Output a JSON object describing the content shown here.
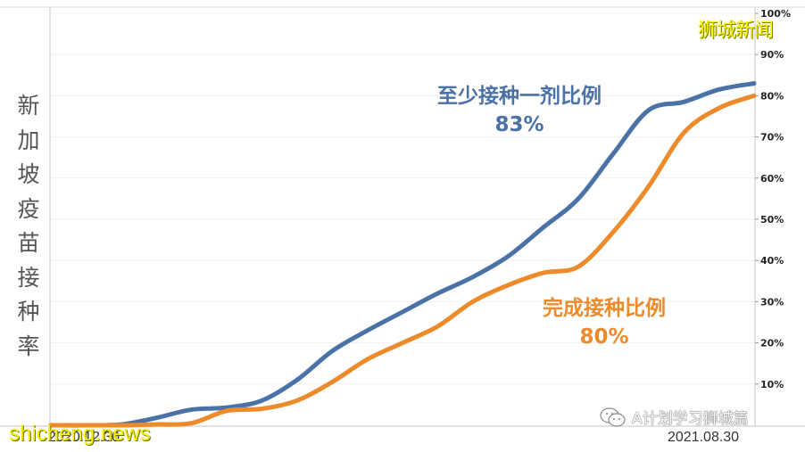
{
  "chart_data": {
    "type": "line",
    "title": "新加坡疫苗接种率",
    "ylabel": "新加坡疫苗接种率",
    "xlabel": "",
    "x_range": [
      "2020.12.30",
      "2021.08.30"
    ],
    "x_tick_labels": [
      "2020.12.30",
      "2021.08.30"
    ],
    "yticks": [
      "10%",
      "20%",
      "30%",
      "40%",
      "50%",
      "60%",
      "70%",
      "80%",
      "90%",
      "100%"
    ],
    "ylim": [
      0,
      100
    ],
    "y_axis_position": "right",
    "grid": true,
    "x": [
      0,
      0.05,
      0.1,
      0.15,
      0.2,
      0.25,
      0.3,
      0.35,
      0.4,
      0.45,
      0.5,
      0.55,
      0.6,
      0.65,
      0.7,
      0.75,
      0.8,
      0.85,
      0.9,
      0.95,
      1.0
    ],
    "series": [
      {
        "name": "至少接种一剂比例",
        "color": "#4a72a6",
        "final_label": "83%",
        "values": [
          0,
          0,
          0.2,
          1.8,
          3.8,
          4.3,
          6,
          11,
          18,
          23,
          27.5,
          32,
          36,
          41,
          48,
          55,
          66,
          76.5,
          78.5,
          81.5,
          83
        ]
      },
      {
        "name": "完成接种比例",
        "color": "#ed8a2a",
        "final_label": "80%",
        "values": [
          0,
          0,
          0,
          0.2,
          0.5,
          3.5,
          4,
          6,
          10.5,
          16,
          20,
          24,
          30,
          34,
          37,
          38.5,
          47,
          58,
          71,
          77,
          80
        ]
      }
    ]
  },
  "labels": {
    "y_title_chars": [
      "新",
      "加",
      "坡",
      "疫",
      "苗",
      "接",
      "种",
      "率"
    ],
    "blue_annotation": "至少接种一剂比例",
    "blue_value": "83%",
    "orange_annotation": "完成接种比例",
    "orange_value": "80%",
    "x_start": "2020.12.30",
    "x_end": "2021.08.30"
  },
  "watermarks": {
    "top_right": "狮城新闻",
    "bottom_left": "shicheng.news",
    "wechat_account": "A计划学习狮城篇",
    "wechat_icon": "wechat-icon"
  }
}
